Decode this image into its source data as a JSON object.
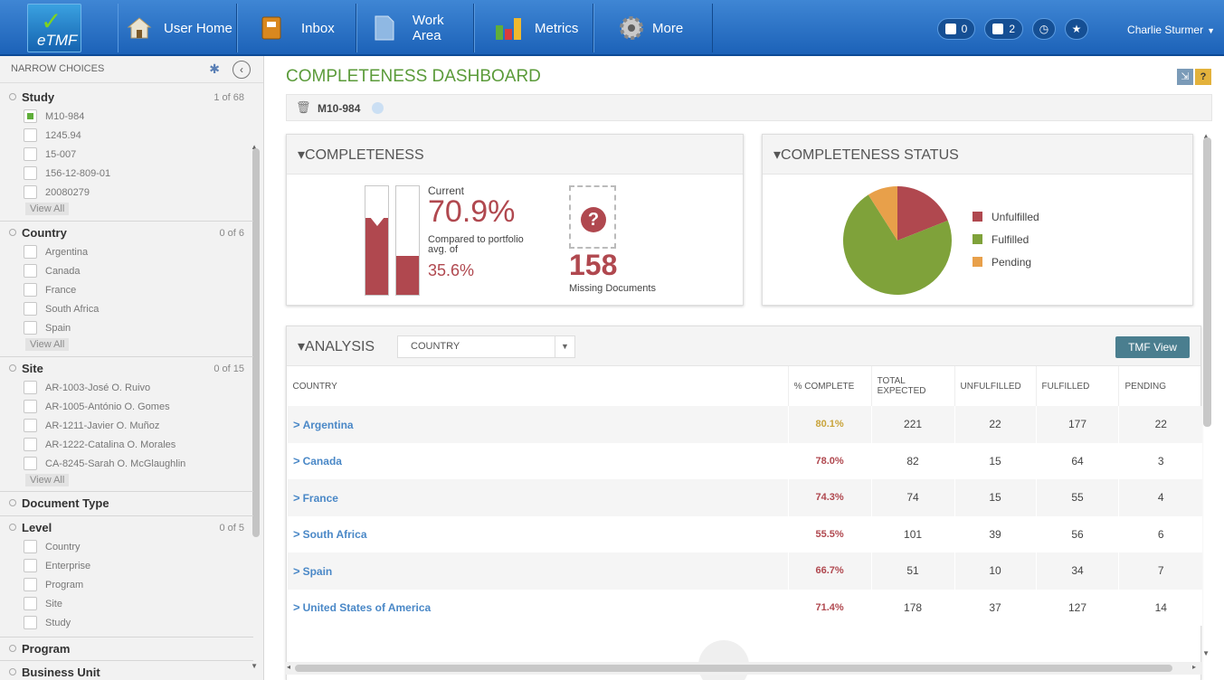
{
  "nav": {
    "logo": "eTMF",
    "items": [
      {
        "label": "User Home",
        "icon": "home-icon"
      },
      {
        "label": "Inbox",
        "icon": "inbox-icon"
      },
      {
        "label": "Work Area",
        "icon": "document-icon"
      },
      {
        "label": "Metrics",
        "icon": "bar-chart-icon"
      },
      {
        "label": "More",
        "icon": "gear-icon"
      }
    ],
    "badge1": "0",
    "badge2": "2",
    "user": "Charlie Sturmer"
  },
  "sidebar": {
    "header": "NARROW CHOICES",
    "study": {
      "title": "Study",
      "count": "1 of 68",
      "options": [
        {
          "label": "M10-984",
          "checked": true
        },
        {
          "label": "1245.94",
          "checked": false
        },
        {
          "label": "15-007",
          "checked": false
        },
        {
          "label": "156-12-809-01",
          "checked": false
        },
        {
          "label": "20080279",
          "checked": false
        }
      ],
      "view_all": "View All"
    },
    "country": {
      "title": "Country",
      "count": "0 of 6",
      "options": [
        "Argentina",
        "Canada",
        "France",
        "South Africa",
        "Spain"
      ],
      "view_all": "View All"
    },
    "site": {
      "title": "Site",
      "count": "0 of 15",
      "options": [
        "AR-1003-José O. Ruivo",
        "AR-1005-António O. Gomes",
        "AR-1211-Javier O. Muñoz",
        "AR-1222-Catalina O. Morales",
        "CA-8245-Sarah O. McGlaughlin"
      ],
      "view_all": "View All"
    },
    "document_type": {
      "title": "Document Type"
    },
    "level": {
      "title": "Level",
      "count": "0 of 5",
      "options": [
        "Country",
        "Enterprise",
        "Program",
        "Site",
        "Study"
      ]
    },
    "program": {
      "title": "Program"
    },
    "business_unit": {
      "title": "Business Unit"
    }
  },
  "main": {
    "title": "COMPLETENESS DASHBOARD",
    "filter_tag": "M10-984",
    "completeness": {
      "header": "COMPLETENESS",
      "current_label": "Current",
      "current_value": "70.9%",
      "current_fraction": 0.709,
      "compare_label": "Compared to portfolio avg. of",
      "compare_value": "35.6%",
      "compare_fraction": 0.356,
      "missing_count": "158",
      "missing_label": "Missing Documents"
    },
    "status": {
      "header": "COMPLETENESS STATUS",
      "legend": [
        {
          "label": "Unfulfilled",
          "color": "#b0484f"
        },
        {
          "label": "Fulfilled",
          "color": "#7fa23a"
        },
        {
          "label": "Pending",
          "color": "#e8a04a"
        }
      ]
    },
    "analysis": {
      "header": "ANALYSIS",
      "dropdown": "COUNTRY",
      "tmf_button": "TMF View",
      "columns": [
        "COUNTRY",
        "% COMPLETE",
        "TOTAL EXPECTED",
        "UNFULFILLED",
        "FULFILLED",
        "PENDING"
      ],
      "rows": [
        {
          "country": "Argentina",
          "pct": "80.1%",
          "pct_color": "#c9a43b",
          "total": "221",
          "unfulfilled": "22",
          "fulfilled": "177",
          "pending": "22"
        },
        {
          "country": "Canada",
          "pct": "78.0%",
          "pct_color": "#b0484f",
          "total": "82",
          "unfulfilled": "15",
          "fulfilled": "64",
          "pending": "3"
        },
        {
          "country": "France",
          "pct": "74.3%",
          "pct_color": "#b0484f",
          "total": "74",
          "unfulfilled": "15",
          "fulfilled": "55",
          "pending": "4"
        },
        {
          "country": "South Africa",
          "pct": "55.5%",
          "pct_color": "#b0484f",
          "total": "101",
          "unfulfilled": "39",
          "fulfilled": "56",
          "pending": "6"
        },
        {
          "country": "Spain",
          "pct": "66.7%",
          "pct_color": "#b0484f",
          "total": "51",
          "unfulfilled": "10",
          "fulfilled": "34",
          "pending": "7"
        },
        {
          "country": "United States of America",
          "pct": "71.4%",
          "pct_color": "#b0484f",
          "total": "178",
          "unfulfilled": "37",
          "fulfilled": "127",
          "pending": "14"
        }
      ]
    }
  },
  "chart_data": {
    "type": "pie",
    "categories": [
      "Unfulfilled",
      "Fulfilled",
      "Pending"
    ],
    "values": [
      19,
      72,
      9
    ],
    "colors": [
      "#b0484f",
      "#7fa23a",
      "#e8a04a"
    ],
    "legend": "right"
  }
}
